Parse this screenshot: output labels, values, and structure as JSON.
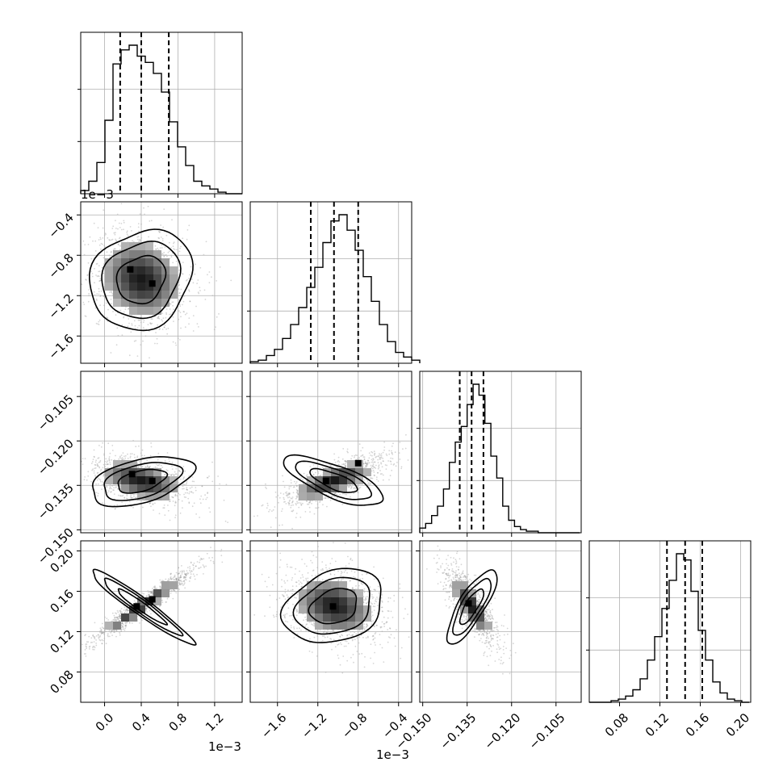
{
  "chart_data": {
    "type": "corner",
    "parameters": 4,
    "colors": {
      "ink": "#000000",
      "grid": "#b0b0b0",
      "dashed": "#000000"
    },
    "grid": true,
    "axes": [
      {
        "ticks": [
          0.0,
          0.4,
          0.8,
          1.2
        ],
        "tick_labels": [
          "0.0",
          "0.4",
          "0.8",
          "1.2"
        ],
        "range": [
          -0.26,
          1.5
        ],
        "offset": "1e−3"
      },
      {
        "ticks": [
          -1.6,
          -1.2,
          -0.8,
          -0.4
        ],
        "tick_labels": [
          "−1.6",
          "−1.2",
          "−0.8",
          "−0.4"
        ],
        "range": [
          -1.87,
          -0.27
        ],
        "offset": "1e−3"
      },
      {
        "ticks": [
          -0.15,
          -0.135,
          -0.12,
          -0.105
        ],
        "tick_labels": [
          "−0.150",
          "−0.135",
          "−0.120",
          "−0.105"
        ],
        "range": [
          -0.151,
          -0.0965
        ],
        "offset": ""
      },
      {
        "ticks": [
          0.08,
          0.12,
          0.16,
          0.2
        ],
        "tick_labels": [
          "0.08",
          "0.12",
          "0.16",
          "0.20"
        ],
        "range": [
          0.05,
          0.21
        ],
        "offset": ""
      }
    ],
    "quantiles": [
      [
        0.17,
        0.4,
        0.7
      ],
      [
        -1.27,
        -1.04,
        -0.8
      ],
      [
        -0.1375,
        -0.1335,
        -0.1295
      ],
      [
        0.127,
        0.145,
        0.162
      ]
    ],
    "histograms": [
      {
        "edges_start": -0.26,
        "bin_width": 0.088,
        "counts": [
          2,
          8,
          20,
          47,
          83,
          92,
          95,
          88,
          84,
          77,
          65,
          46,
          30,
          18,
          8,
          5,
          3,
          1,
          0,
          0
        ]
      },
      {
        "edges_start": -1.87,
        "bin_width": 0.08,
        "counts": [
          1,
          2,
          5,
          9,
          16,
          25,
          36,
          49,
          62,
          78,
          92,
          96,
          86,
          73,
          56,
          40,
          25,
          14,
          7,
          4,
          2
        ]
      },
      {
        "edges_start": -0.151,
        "bin_width": 0.002,
        "counts": [
          3,
          6,
          11,
          17,
          28,
          45,
          58,
          68,
          82,
          95,
          88,
          70,
          49,
          35,
          17,
          8,
          4,
          2,
          1,
          1,
          0,
          0,
          0,
          0,
          0,
          0,
          0
        ]
      },
      {
        "edges_start": 0.05,
        "bin_width": 0.0072,
        "counts": [
          0,
          0,
          0,
          1,
          2,
          4,
          8,
          15,
          27,
          42,
          60,
          78,
          95,
          91,
          71,
          46,
          27,
          13,
          6,
          2,
          1,
          0
        ]
      }
    ],
    "correlations": {
      "1_0": -0.15,
      "2_0": -0.45,
      "2_1": 0.72,
      "3_0": 0.96,
      "3_1": -0.25,
      "3_2": -0.8
    },
    "mode_points": {
      "1_0": [
        [
          0.28,
          -0.94
        ],
        [
          0.52,
          -1.08
        ]
      ],
      "2_0": [
        [
          0.3,
          -0.1312
        ],
        [
          0.52,
          -0.1335
        ]
      ],
      "2_1": [
        [
          -1.12,
          -0.1335
        ],
        [
          -0.8,
          -0.1275
        ]
      ],
      "3_0": [
        [
          0.35,
          0.145
        ],
        [
          0.52,
          0.152
        ]
      ],
      "3_1": [
        [
          -1.05,
          0.145
        ]
      ],
      "3_2": [
        [
          -0.1345,
          0.148
        ]
      ]
    }
  }
}
